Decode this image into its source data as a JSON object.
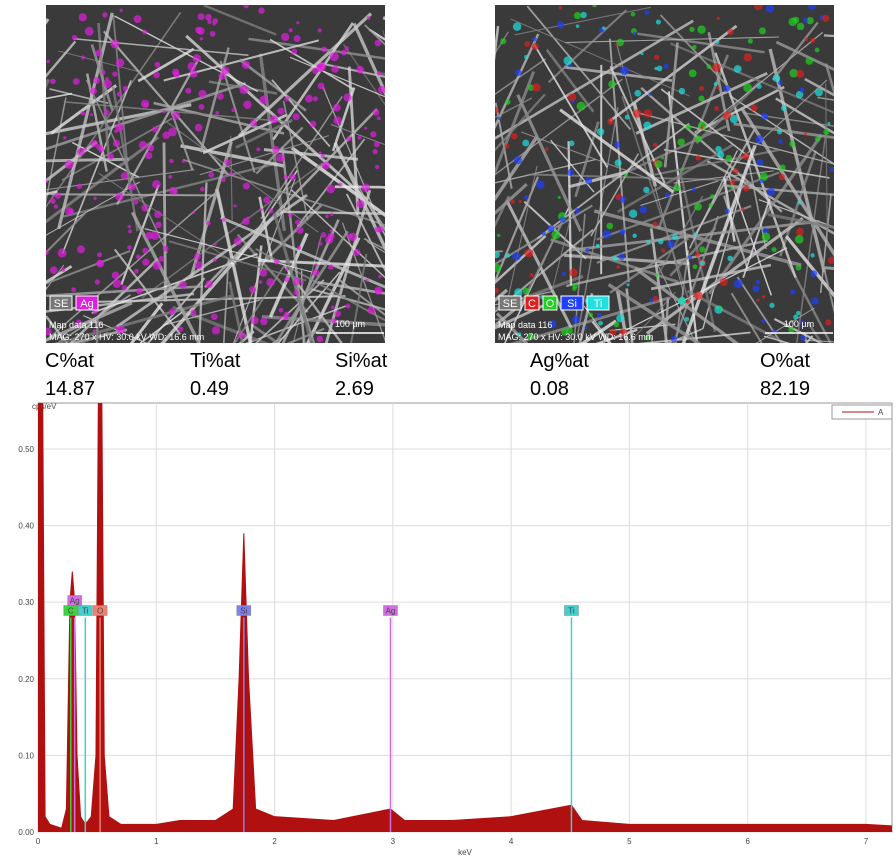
{
  "maps": [
    {
      "tags": [
        {
          "text": "SE",
          "color": "#ffffff"
        },
        {
          "text": "Ag",
          "color": "#e020e0"
        }
      ],
      "caption": "Map data 116",
      "info": "MAG: 270 x   HV: 30.0 kV   WD: 16.6 mm",
      "scale": "100 µm"
    },
    {
      "tags": [
        {
          "text": "SE",
          "color": "#ffffff"
        },
        {
          "text": "C",
          "color": "#e02020"
        },
        {
          "text": "O",
          "color": "#20d020"
        },
        {
          "text": "Si",
          "color": "#2040ff"
        },
        {
          "text": "Ti",
          "color": "#20e0e0"
        }
      ],
      "caption": "Map data 116",
      "info": "MAG: 270 x   HV: 30.0 kV   WD: 16.6 mm",
      "scale": "100 µm"
    }
  ],
  "table": {
    "headers": [
      "C%at",
      "Ti%at",
      "Si%at",
      "Ag%at",
      "O%at"
    ],
    "values": [
      "14.87",
      "0.49",
      "2.69",
      "0.08",
      "82.19"
    ]
  },
  "chart_data": {
    "type": "area",
    "y_label": "cps/eV",
    "x_label": "keV",
    "series": [
      {
        "name": "A",
        "color": "#b01010",
        "x": [
          0,
          0.04,
          0.06,
          0.1,
          0.2,
          0.24,
          0.27,
          0.29,
          0.31,
          0.33,
          0.36,
          0.4,
          0.45,
          0.49,
          0.51,
          0.54,
          0.56,
          0.6,
          0.7,
          1.0,
          1.2,
          1.5,
          1.65,
          1.7,
          1.74,
          1.78,
          1.84,
          2.0,
          2.5,
          2.98,
          3.1,
          3.5,
          4.0,
          4.51,
          4.6,
          5.0,
          6.0,
          7.0,
          7.22
        ],
        "values": [
          0.56,
          0.56,
          0.02,
          0.01,
          0.005,
          0.03,
          0.3,
          0.34,
          0.3,
          0.1,
          0.02,
          0.01,
          0.02,
          0.1,
          0.56,
          0.56,
          0.1,
          0.02,
          0.01,
          0.01,
          0.015,
          0.015,
          0.03,
          0.2,
          0.39,
          0.2,
          0.03,
          0.02,
          0.015,
          0.03,
          0.015,
          0.015,
          0.02,
          0.035,
          0.015,
          0.01,
          0.01,
          0.01,
          0.008
        ]
      }
    ],
    "peaks": [
      {
        "label": "Ag",
        "x": 0.31,
        "y": 0.28,
        "color": "#d070e0",
        "row": 1
      },
      {
        "label": "C",
        "x": 0.277,
        "y": 0.28,
        "color": "#40d040",
        "row": 0
      },
      {
        "label": "Ti",
        "x": 0.4,
        "y": 0.28,
        "color": "#40d0d0",
        "row": 0
      },
      {
        "label": "O",
        "x": 0.525,
        "y": 0.28,
        "color": "#f08070",
        "row": 0
      },
      {
        "label": "Si",
        "x": 1.74,
        "y": 0.28,
        "color": "#8080f0",
        "row": 0
      },
      {
        "label": "Ag",
        "x": 2.98,
        "y": 0.28,
        "color": "#d070e0",
        "row": 0
      },
      {
        "label": "Ti",
        "x": 4.51,
        "y": 0.28,
        "color": "#40d0d0",
        "row": 0
      }
    ],
    "xlim": [
      0,
      7.22
    ],
    "ylim": [
      0,
      0.56
    ],
    "xticks": [
      0,
      1,
      2,
      3,
      4,
      5,
      6,
      7
    ],
    "yticks": [
      {
        "value": 0,
        "label": "0.00"
      },
      {
        "value": 0.1,
        "label": "0.10"
      },
      {
        "value": 0.2,
        "label": "0.20"
      },
      {
        "value": 0.3,
        "label": "0.30"
      },
      {
        "value": 0.4,
        "label": "0.40"
      },
      {
        "value": 0.5,
        "label": "0.50"
      }
    ],
    "grid": true,
    "legend": "upper right"
  }
}
